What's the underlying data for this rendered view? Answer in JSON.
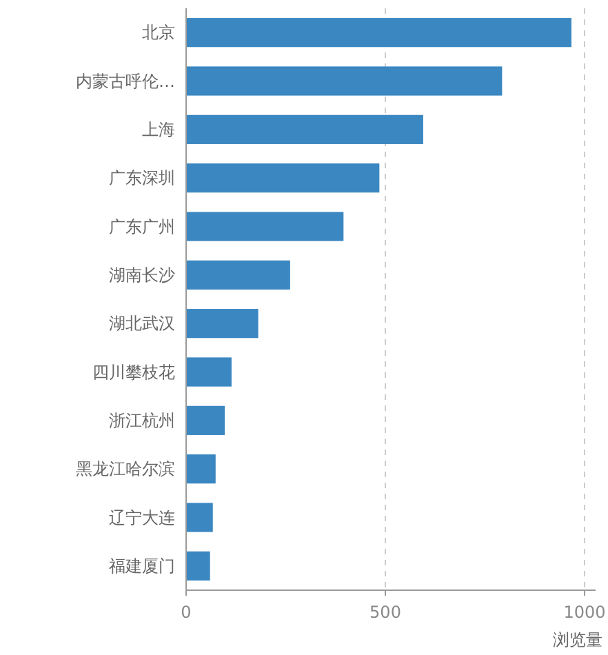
{
  "chart_data": {
    "type": "bar",
    "orientation": "horizontal",
    "categories": [
      "北京",
      "内蒙古呼伦…",
      "上海",
      "广东深圳",
      "广东广州",
      "湖南长沙",
      "湖北武汉",
      "四川攀枝花",
      "浙江杭州",
      "黑龙江哈尔滨",
      "辽宁大连",
      "福建厦门"
    ],
    "values": [
      967,
      793,
      595,
      485,
      395,
      261,
      181,
      114,
      97,
      74,
      67,
      60
    ],
    "color": "#3a87c2",
    "xlim": [
      0,
      1000
    ],
    "xticks": [
      0,
      500,
      1000
    ],
    "xlabel": "浏览量",
    "grid": "x"
  }
}
